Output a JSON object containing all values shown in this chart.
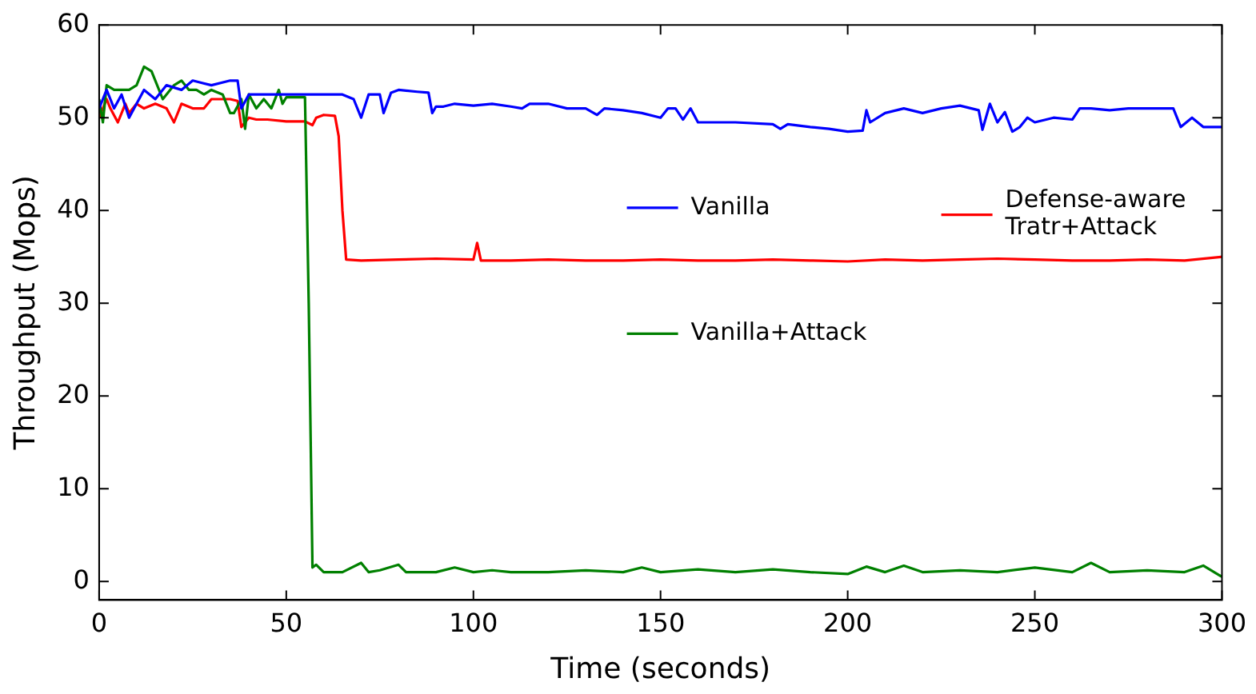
{
  "chart_data": {
    "type": "line",
    "xlabel": "Time (seconds)",
    "ylabel": "Throughput (Mops)",
    "xlim": [
      0,
      300
    ],
    "xticks": [
      0,
      50,
      100,
      150,
      200,
      250,
      300
    ],
    "ylim": [
      -2,
      60
    ],
    "yticks": [
      0,
      10,
      20,
      30,
      40,
      50,
      60
    ],
    "grid": false,
    "legend": "right",
    "marker": "none",
    "line_style": "solid",
    "series": [
      {
        "name": "Vanilla",
        "color": "#0000ff",
        "x": [
          0,
          2,
          4,
          6,
          8,
          10,
          12,
          15,
          18,
          22,
          25,
          30,
          35,
          37,
          38,
          40,
          45,
          50,
          55,
          60,
          65,
          68,
          70,
          72,
          75,
          76,
          78,
          80,
          85,
          88,
          89,
          90,
          92,
          95,
          100,
          105,
          110,
          113,
          115,
          120,
          125,
          130,
          133,
          135,
          140,
          145,
          150,
          152,
          154,
          156,
          158,
          160,
          170,
          180,
          182,
          184,
          190,
          195,
          200,
          204,
          205,
          206,
          210,
          215,
          220,
          225,
          230,
          235,
          236,
          238,
          240,
          242,
          244,
          246,
          248,
          250,
          255,
          260,
          262,
          265,
          270,
          275,
          280,
          285,
          287,
          289,
          292,
          295,
          300
        ],
        "values": [
          51,
          53,
          51,
          52.5,
          50,
          51.5,
          53,
          52,
          53.5,
          53,
          54,
          53.5,
          54,
          54,
          51,
          52.5,
          52.5,
          52.5,
          52.5,
          52.5,
          52.5,
          52,
          50,
          52.5,
          52.5,
          50.5,
          52.7,
          53,
          52.8,
          52.7,
          50.5,
          51.2,
          51.2,
          51.5,
          51.3,
          51.5,
          51.2,
          51,
          51.5,
          51.5,
          51,
          51,
          50.3,
          51,
          50.8,
          50.5,
          50,
          51,
          51,
          49.8,
          51,
          49.5,
          49.5,
          49.3,
          48.8,
          49.3,
          49,
          48.8,
          48.5,
          48.6,
          50.8,
          49.5,
          50.5,
          51,
          50.5,
          51,
          51.3,
          50.8,
          48.7,
          51.5,
          49.5,
          50.6,
          48.5,
          49,
          50,
          49.5,
          50,
          49.8,
          51,
          51,
          50.8,
          51,
          51,
          51,
          51,
          49,
          50,
          49,
          49
        ]
      },
      {
        "name": "Vanilla+Attack",
        "color": "#008000",
        "x": [
          0,
          1,
          2,
          4,
          6,
          8,
          10,
          12,
          14,
          17,
          20,
          22,
          24,
          26,
          28,
          30,
          33,
          35,
          36,
          38,
          39,
          40,
          42,
          44,
          46,
          48,
          49,
          50,
          52,
          55,
          56,
          57,
          58,
          60,
          65,
          70,
          72,
          75,
          80,
          82,
          85,
          90,
          95,
          100,
          105,
          110,
          120,
          130,
          140,
          145,
          150,
          160,
          170,
          180,
          190,
          200,
          205,
          210,
          215,
          220,
          230,
          240,
          250,
          260,
          265,
          270,
          280,
          290,
          295,
          300
        ],
        "values": [
          52,
          49.5,
          53.5,
          53,
          53,
          53,
          53.5,
          55.5,
          55,
          52,
          53.5,
          54,
          53,
          53,
          52.5,
          53,
          52.5,
          50.5,
          50.5,
          52,
          48.8,
          52.5,
          51,
          52,
          51,
          53,
          51.5,
          52.2,
          52.2,
          52.2,
          30,
          1.5,
          1.8,
          1,
          1,
          2,
          1,
          1.2,
          1.8,
          1,
          1,
          1,
          1.5,
          1,
          1.2,
          1,
          1,
          1.2,
          1,
          1.5,
          1,
          1.3,
          1,
          1.3,
          1,
          0.8,
          1.6,
          1,
          1.7,
          1,
          1.2,
          1,
          1.5,
          1,
          2,
          1,
          1.2,
          1,
          1.7,
          0.5
        ]
      },
      {
        "name": "Defense-aware Tratr+Attack",
        "color": "#ff0000",
        "x": [
          0,
          2,
          3,
          5,
          7,
          8,
          10,
          12,
          15,
          18,
          20,
          22,
          25,
          28,
          30,
          32,
          35,
          37,
          38,
          40,
          42,
          45,
          50,
          55,
          57,
          58,
          60,
          63,
          64,
          65,
          66,
          70,
          80,
          90,
          100,
          101,
          102,
          110,
          120,
          130,
          140,
          150,
          160,
          170,
          180,
          190,
          200,
          210,
          220,
          230,
          240,
          250,
          260,
          270,
          280,
          290,
          300
        ],
        "values": [
          50,
          52,
          51,
          49.5,
          51.5,
          50.5,
          51.5,
          51,
          51.5,
          51,
          49.5,
          51.5,
          51,
          51,
          52,
          52,
          52,
          51.8,
          49,
          50,
          49.8,
          49.8,
          49.6,
          49.6,
          49.2,
          50,
          50.3,
          50.2,
          48,
          40,
          34.7,
          34.6,
          34.7,
          34.8,
          34.7,
          36.5,
          34.6,
          34.6,
          34.7,
          34.6,
          34.6,
          34.7,
          34.6,
          34.6,
          34.7,
          34.6,
          34.5,
          34.7,
          34.6,
          34.7,
          34.8,
          34.7,
          34.6,
          34.6,
          34.7,
          34.6,
          35
        ]
      }
    ]
  }
}
